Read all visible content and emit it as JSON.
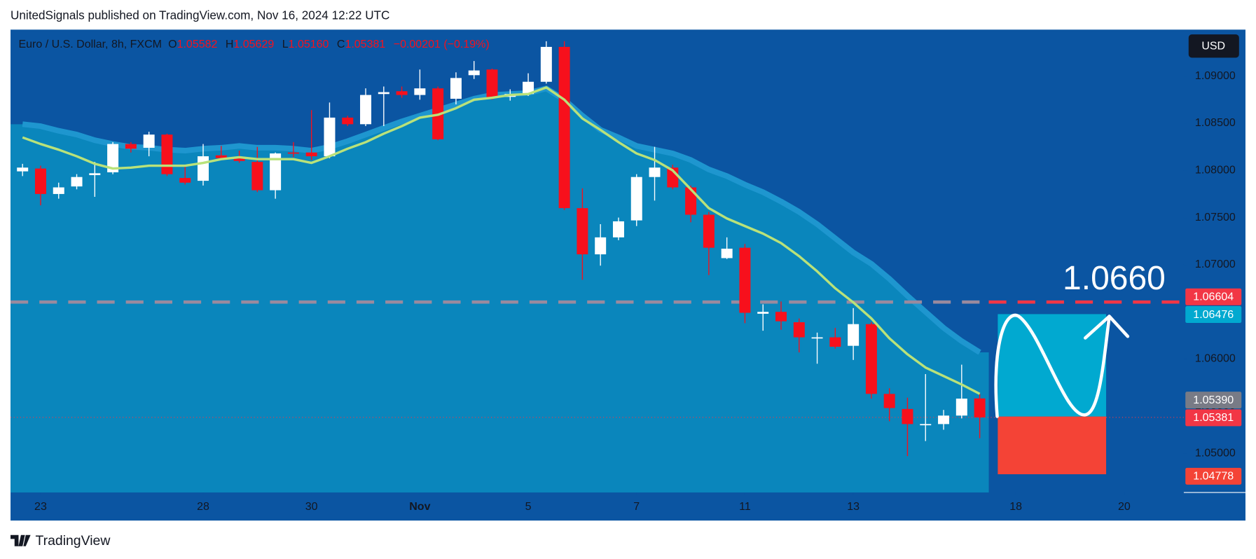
{
  "header": "UnitedSignals published on TradingView.com, Nov 16, 2024 12:22 UTC",
  "footer": "TradingView",
  "chart_data": {
    "type": "candlestick",
    "title": "Euro / U.S. Dollar, 8h, FXCM",
    "ohlc_legend": [
      {
        "key": "O",
        "value": "1.05582"
      },
      {
        "key": "H",
        "value": "1.05629"
      },
      {
        "key": "L",
        "value": "1.05160"
      },
      {
        "key": "C",
        "value": "1.05381"
      }
    ],
    "change": "−0.00201 (−0.19%)",
    "currency": "USD",
    "up_color": "#ffffff",
    "down_color": "#f7101c",
    "candles": [
      [
        1.0799,
        1.0807,
        1.0794,
        1.0803
      ],
      [
        1.0802,
        1.0805,
        1.0763,
        1.0775
      ],
      [
        1.0775,
        1.0787,
        1.077,
        1.0782
      ],
      [
        1.0783,
        1.0796,
        1.078,
        1.0793
      ],
      [
        1.0795,
        1.0809,
        1.0772,
        1.0797
      ],
      [
        1.0798,
        1.083,
        1.0796,
        1.0828
      ],
      [
        1.0828,
        1.083,
        1.0819,
        1.0823
      ],
      [
        1.0824,
        1.0841,
        1.0815,
        1.0838
      ],
      [
        1.0838,
        1.0839,
        1.0794,
        1.0796
      ],
      [
        1.0792,
        1.0804,
        1.0785,
        1.0787
      ],
      [
        1.0789,
        1.0828,
        1.0784,
        1.0815
      ],
      [
        1.0816,
        1.0826,
        1.0811,
        1.0813
      ],
      [
        1.0813,
        1.0821,
        1.0808,
        1.081
      ],
      [
        1.0809,
        1.0825,
        1.0777,
        1.0779
      ],
      [
        1.0779,
        1.0819,
        1.077,
        1.0818
      ],
      [
        1.0819,
        1.083,
        1.0814,
        1.0818
      ],
      [
        1.0819,
        1.0864,
        1.0811,
        1.0815
      ],
      [
        1.0815,
        1.0872,
        1.0813,
        1.0856
      ],
      [
        1.0856,
        1.0858,
        1.0847,
        1.0849
      ],
      [
        1.0849,
        1.0887,
        1.0847,
        1.088
      ],
      [
        1.0881,
        1.0889,
        1.0847,
        1.0883
      ],
      [
        1.0884,
        1.0889,
        1.0877,
        1.088
      ],
      [
        1.088,
        1.0907,
        1.0875,
        1.0887
      ],
      [
        1.0887,
        1.0889,
        1.0832,
        1.0833
      ],
      [
        1.0876,
        1.0904,
        1.087,
        1.0898
      ],
      [
        1.0901,
        1.0916,
        1.0897,
        1.0906
      ],
      [
        1.0907,
        1.0908,
        1.0875,
        1.0877
      ],
      [
        1.0878,
        1.0886,
        1.0874,
        1.0881
      ],
      [
        1.0881,
        1.0903,
        1.0879,
        1.0894
      ],
      [
        1.0894,
        1.0937,
        1.0892,
        1.0931
      ],
      [
        1.0931,
        1.0937,
        1.0758,
        1.076
      ],
      [
        1.076,
        1.0781,
        1.0684,
        1.0711
      ],
      [
        1.0711,
        1.0743,
        1.0699,
        1.0729
      ],
      [
        1.0729,
        1.075,
        1.0726,
        1.0746
      ],
      [
        1.0747,
        1.0796,
        1.0741,
        1.0793
      ],
      [
        1.0793,
        1.0825,
        1.0768,
        1.0803
      ],
      [
        1.0803,
        1.0806,
        1.078,
        1.0782
      ],
      [
        1.0782,
        1.0784,
        1.0745,
        1.0753
      ],
      [
        1.0753,
        1.0756,
        1.0689,
        1.0718
      ],
      [
        1.0707,
        1.0729,
        1.0706,
        1.0717
      ],
      [
        1.0718,
        1.0722,
        1.0638,
        1.0649
      ],
      [
        1.0648,
        1.0658,
        1.063,
        1.065
      ],
      [
        1.065,
        1.0661,
        1.0631,
        1.064
      ],
      [
        1.0639,
        1.0643,
        1.0607,
        1.0623
      ],
      [
        1.0622,
        1.0628,
        1.0595,
        1.0623
      ],
      [
        1.0623,
        1.0633,
        1.0611,
        1.0613
      ],
      [
        1.0614,
        1.0654,
        1.0599,
        1.0637
      ],
      [
        1.0637,
        1.0639,
        1.0558,
        1.0563
      ],
      [
        1.0563,
        1.0569,
        1.0534,
        1.0548
      ],
      [
        1.0547,
        1.0559,
        1.0497,
        1.0531
      ],
      [
        1.053,
        1.0584,
        1.0513,
        1.0531
      ],
      [
        1.0531,
        1.0546,
        1.0525,
        1.054
      ],
      [
        1.054,
        1.0594,
        1.0537,
        1.0558
      ],
      [
        1.05582,
        1.05629,
        1.0516,
        1.05381
      ]
    ],
    "lines": [
      {
        "style": "area",
        "color": "#1e96cf",
        "fill": "#0a86bc",
        "values": [
          1.0849,
          1.0847,
          1.0842,
          1.0838,
          1.0832,
          1.0828,
          1.0825,
          1.0824,
          1.0822,
          1.0821,
          1.0823,
          1.0824,
          1.0826,
          1.0824,
          1.0824,
          1.0823,
          1.0821,
          1.0825,
          1.0831,
          1.0838,
          1.0845,
          1.0852,
          1.0858,
          1.0864,
          1.087,
          1.0876,
          1.088,
          1.0881,
          1.0882,
          1.0887,
          1.0875,
          1.0858,
          1.0843,
          1.0835,
          1.0826,
          1.0822,
          1.0818,
          1.0811,
          1.0801,
          1.0794,
          1.0785,
          1.0777,
          1.0767,
          1.0756,
          1.0743,
          1.0728,
          1.0713,
          1.0701,
          1.0685,
          1.0667,
          1.065,
          1.0633,
          1.0619,
          1.0607
        ]
      },
      {
        "style": "line",
        "color": "#b9e27a",
        "values": [
          1.0835,
          1.0828,
          1.0822,
          1.0815,
          1.0807,
          1.0802,
          1.0803,
          1.0805,
          1.0805,
          1.0805,
          1.0808,
          1.0812,
          1.0814,
          1.0812,
          1.0812,
          1.0812,
          1.0808,
          1.0815,
          1.0823,
          1.083,
          1.0839,
          1.0847,
          1.0856,
          1.0859,
          1.0866,
          1.0875,
          1.0877,
          1.088,
          1.0881,
          1.0888,
          1.0875,
          1.0855,
          1.0843,
          1.083,
          1.0818,
          1.0811,
          1.08,
          1.078,
          1.076,
          1.0749,
          1.0741,
          1.0733,
          1.0723,
          1.0709,
          1.0693,
          1.0675,
          1.066,
          1.0643,
          1.0622,
          1.0605,
          1.0591,
          1.0582,
          1.0573,
          1.0563
        ]
      }
    ],
    "xlim": [
      -0.665,
      64.3
    ],
    "xticks": [
      {
        "value": 1,
        "label": "23"
      },
      {
        "value": 10,
        "label": "28"
      },
      {
        "value": 16,
        "label": "30"
      },
      {
        "value": 22,
        "label": "Nov"
      },
      {
        "value": 28,
        "label": "5"
      },
      {
        "value": 34,
        "label": "7"
      },
      {
        "value": 40,
        "label": "11"
      },
      {
        "value": 46,
        "label": "13"
      },
      {
        "value": 55,
        "label": "18"
      },
      {
        "value": 61,
        "label": "20"
      }
    ],
    "ylim": [
      1.04584,
      1.09493
    ],
    "yticks": [
      {
        "value": 1.05,
        "label": "1.05000"
      },
      {
        "value": 1.055,
        "label": "1.05500"
      },
      {
        "value": 1.06,
        "label": "1.06000"
      },
      {
        "value": 1.065,
        "label": "1.06500"
      },
      {
        "value": 1.07,
        "label": "1.07000"
      },
      {
        "value": 1.075,
        "label": "1.07500"
      },
      {
        "value": 1.08,
        "label": "1.08000"
      },
      {
        "value": 1.085,
        "label": "1.08500"
      },
      {
        "value": 1.09,
        "label": "1.09000"
      }
    ],
    "grid": false,
    "hline": {
      "value": 1.06604,
      "label": "1.06604",
      "color": "#f23645"
    },
    "last_price": {
      "value": 1.05381,
      "label": "1.05381",
      "color": "#f23645"
    },
    "annotation": "1.0660",
    "position": {
      "x": [
        54,
        60
      ],
      "target": {
        "value": 1.06476,
        "label": "1.06476",
        "color": "#01a9d0"
      },
      "entry": {
        "value": 1.0539,
        "label": "1.05390",
        "color": "#787b86"
      },
      "stop": {
        "value": 1.04778,
        "label": "1.04778",
        "color": "#f44336"
      }
    }
  }
}
